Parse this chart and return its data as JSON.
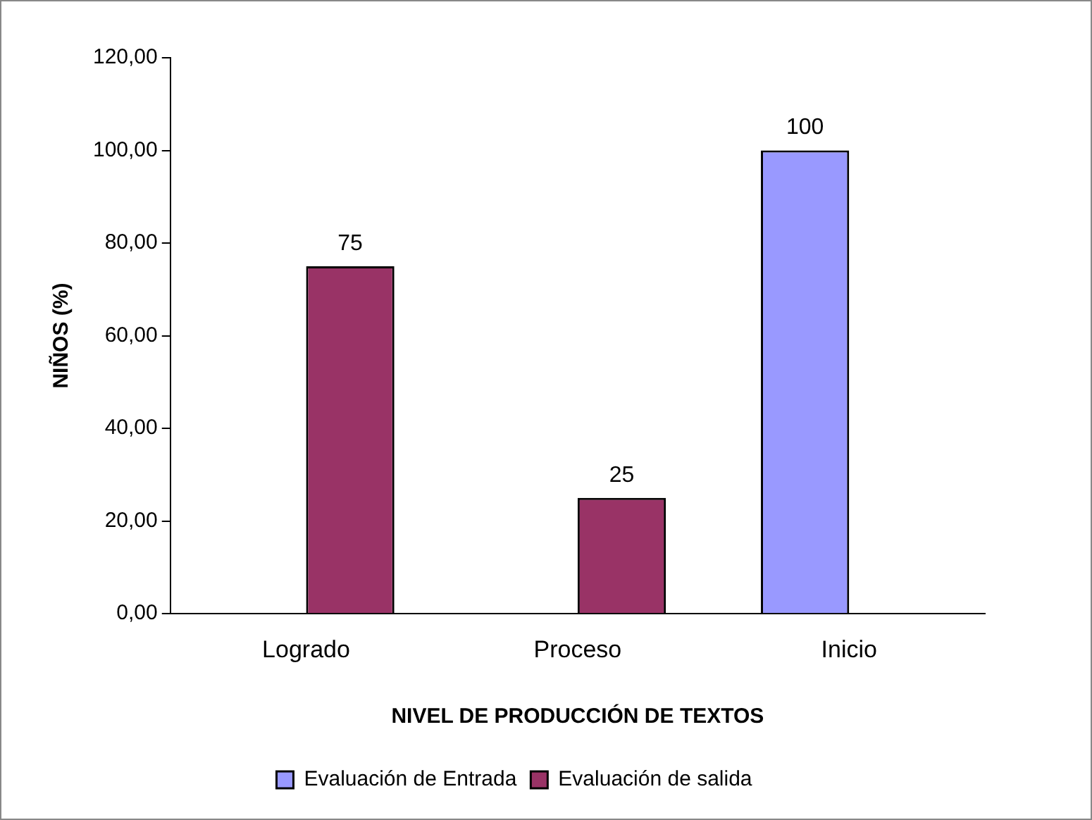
{
  "chart_data": {
    "type": "bar",
    "categories": [
      "Logrado",
      "Proceso",
      "Inicio"
    ],
    "series": [
      {
        "name": "Evaluación de Entrada",
        "color": "#9999ff",
        "values": [
          null,
          null,
          100
        ]
      },
      {
        "name": "Evaluación de salida",
        "color": "#993366",
        "values": [
          75,
          25,
          null
        ]
      }
    ],
    "xlabel": "NIVEL DE PRODUCCIÓN DE TEXTOS",
    "ylabel": "NIÑOS (%)",
    "ylim": [
      0,
      120
    ],
    "yticks": [
      {
        "value": 0,
        "label": "0,00"
      },
      {
        "value": 20,
        "label": "20,00"
      },
      {
        "value": 40,
        "label": "40,00"
      },
      {
        "value": 60,
        "label": "60,00"
      },
      {
        "value": 80,
        "label": "80,00"
      },
      {
        "value": 100,
        "label": "100,00"
      },
      {
        "value": 120,
        "label": "120,00"
      }
    ],
    "data_labels": true,
    "grid": false,
    "legend": "bottom"
  }
}
